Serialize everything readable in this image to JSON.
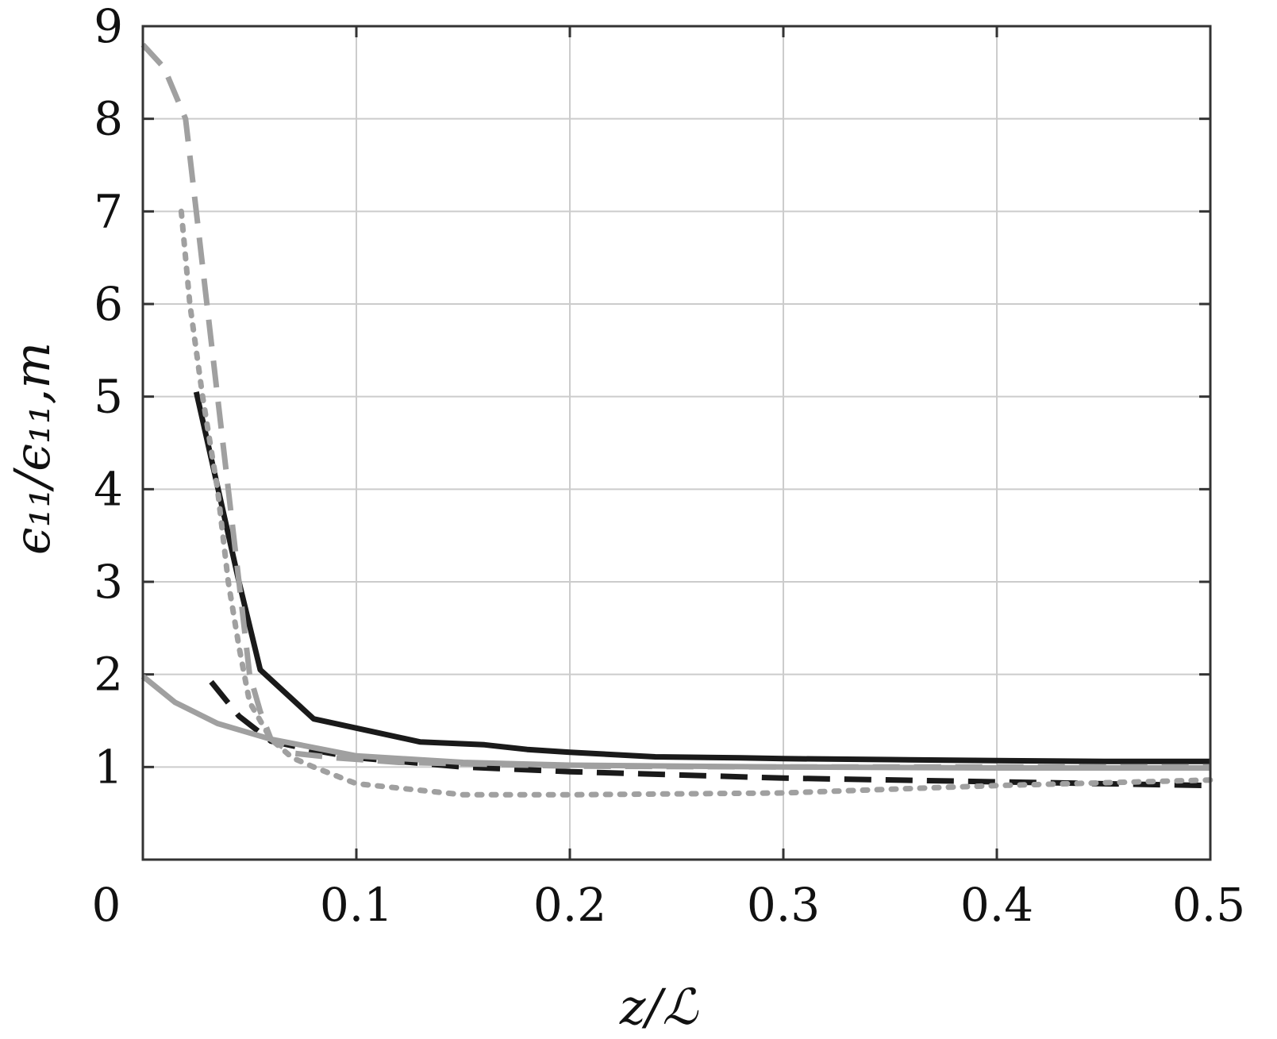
{
  "chart_data": {
    "type": "line",
    "title": "",
    "xlabel": "z/ℒ",
    "ylabel": "ϵ₁₁/ϵ₁₁,m",
    "xlim": [
      0,
      0.5
    ],
    "ylim": [
      0,
      9
    ],
    "x_ticks": [
      "0",
      "0.1",
      "0.2",
      "0.3",
      "0.4",
      "0.5"
    ],
    "y_ticks": [
      "1",
      "2",
      "3",
      "4",
      "5",
      "6",
      "7",
      "8",
      "9"
    ],
    "grid": true,
    "series": [
      {
        "style": "solid",
        "color": "#1a1a1a",
        "x": [
          0.025,
          0.045,
          0.055,
          0.08,
          0.1,
          0.13,
          0.16,
          0.18,
          0.2,
          0.24,
          0.28,
          0.3,
          0.35,
          0.4,
          0.45,
          0.5
        ],
        "y": [
          5.05,
          3.0,
          2.05,
          1.52,
          1.42,
          1.27,
          1.24,
          1.19,
          1.16,
          1.11,
          1.1,
          1.09,
          1.08,
          1.07,
          1.06,
          1.06
        ]
      },
      {
        "style": "dashed",
        "color": "#1a1a1a",
        "x": [
          0.032,
          0.045,
          0.06,
          0.08,
          0.1,
          0.15,
          0.2,
          0.3,
          0.4,
          0.5
        ],
        "y": [
          1.92,
          1.55,
          1.28,
          1.18,
          1.1,
          1.0,
          0.95,
          0.88,
          0.84,
          0.8
        ]
      },
      {
        "style": "dashed",
        "color": "#a0a0a0",
        "x": [
          0.0,
          0.01,
          0.02,
          0.025,
          0.03,
          0.035,
          0.04,
          0.045,
          0.05,
          0.055,
          0.06,
          0.07,
          0.09,
          0.12,
          0.2,
          0.3,
          0.5
        ],
        "y": [
          8.8,
          8.55,
          8.0,
          7.0,
          6.0,
          5.0,
          4.0,
          3.0,
          2.0,
          1.6,
          1.3,
          1.15,
          1.1,
          1.05,
          1.01,
          1.0,
          1.0
        ]
      },
      {
        "style": "dotted",
        "color": "#a0a0a0",
        "x": [
          0.018,
          0.022,
          0.028,
          0.035,
          0.04,
          0.045,
          0.05,
          0.06,
          0.07,
          0.08,
          0.1,
          0.15,
          0.2,
          0.3,
          0.4,
          0.5
        ],
        "y": [
          7.0,
          6.0,
          5.0,
          4.0,
          3.0,
          2.3,
          1.7,
          1.3,
          1.1,
          1.0,
          0.82,
          0.7,
          0.7,
          0.72,
          0.8,
          0.86
        ]
      },
      {
        "style": "solid",
        "color": "#a0a0a0",
        "x": [
          0.0,
          0.015,
          0.035,
          0.06,
          0.1,
          0.15,
          0.2,
          0.3,
          0.4,
          0.5
        ],
        "y": [
          1.98,
          1.7,
          1.47,
          1.3,
          1.12,
          1.05,
          1.02,
          1.0,
          0.99,
          0.99
        ]
      }
    ]
  }
}
